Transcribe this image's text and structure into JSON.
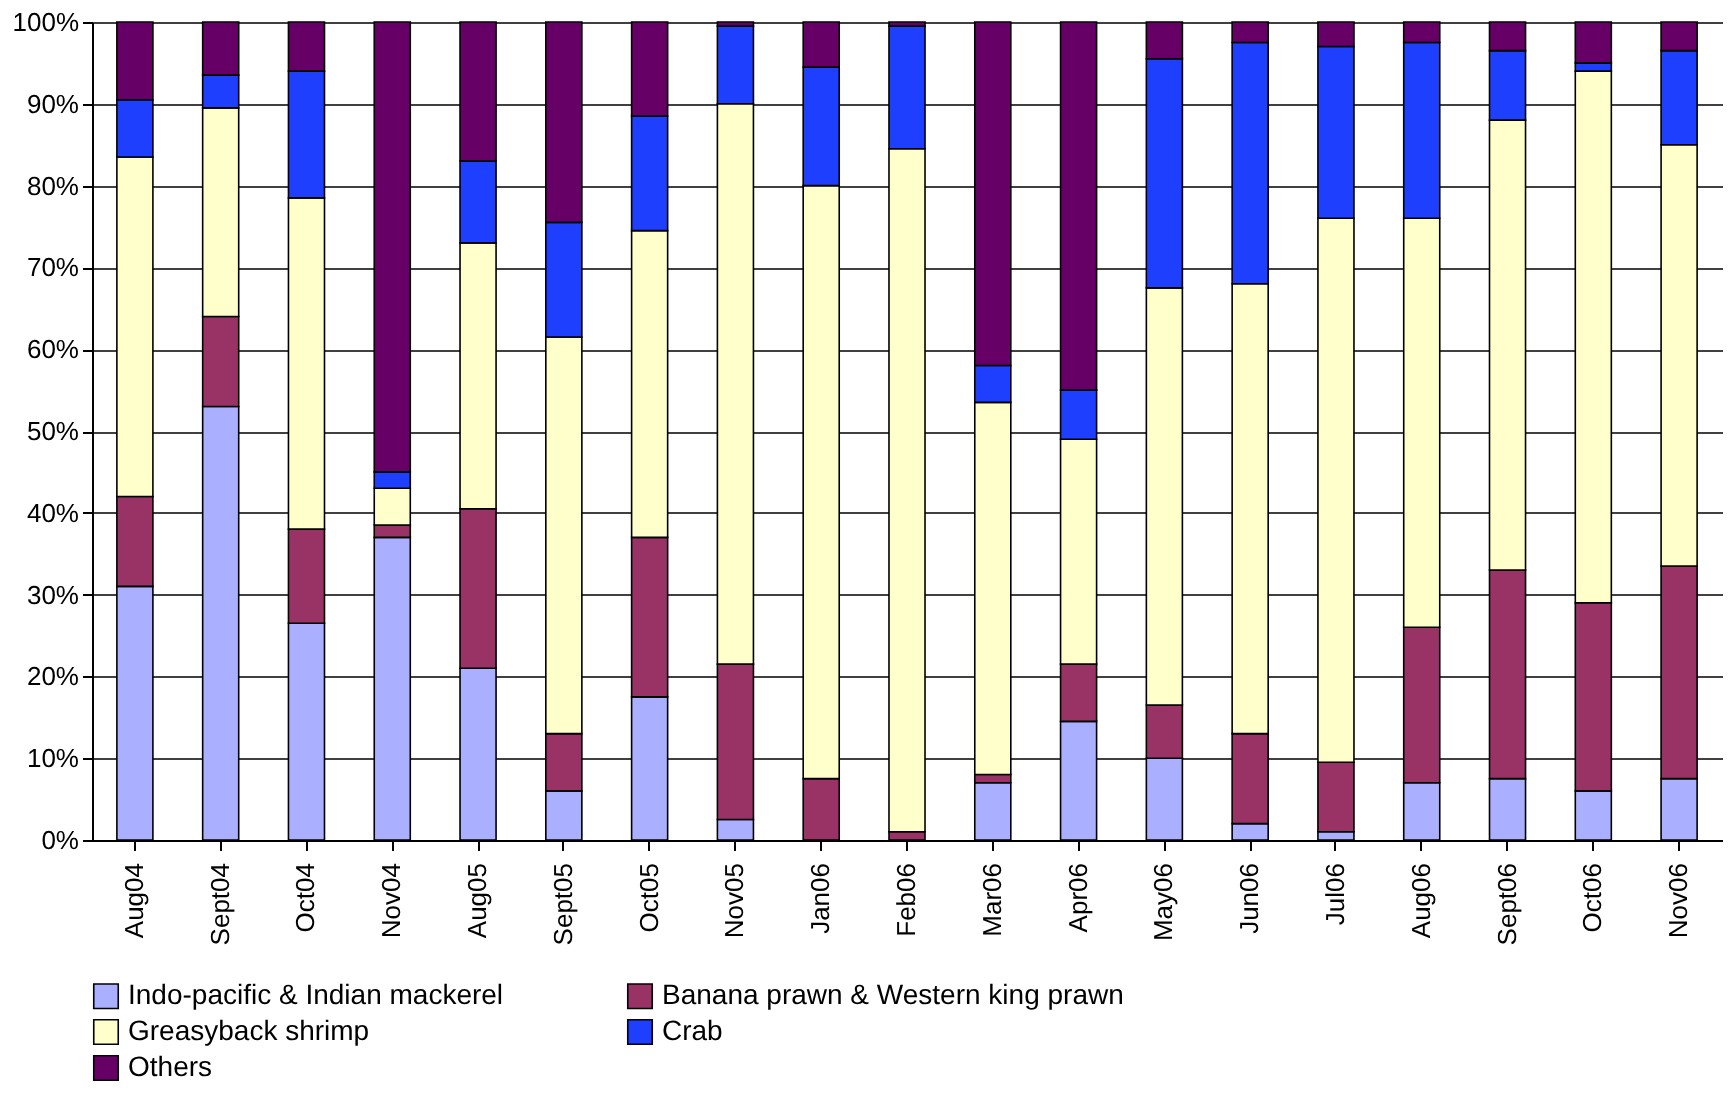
{
  "chart_data": {
    "type": "bar",
    "stacked": true,
    "categories": [
      "Aug04",
      "Sept04",
      "Oct04",
      "Nov04",
      "Aug05",
      "Sept05",
      "Oct05",
      "Nov05",
      "Jan06",
      "Feb06",
      "Mar06",
      "Apr06",
      "May06",
      "Jun06",
      "Jul06",
      "Aug06",
      "Sept06",
      "Oct06",
      "Nov06"
    ],
    "series": [
      {
        "name": "Indo-pacific & Indian mackerel",
        "color": "#aab0ff",
        "values": [
          31,
          53,
          26.5,
          37,
          21,
          6,
          17.5,
          2.5,
          0,
          0,
          7,
          14.5,
          10,
          2,
          1,
          7,
          7.5,
          6,
          7.5
        ]
      },
      {
        "name": "Banana prawn & Western king prawn",
        "color": "#993366",
        "values": [
          11,
          11,
          11.5,
          1.5,
          19.5,
          7,
          19.5,
          19,
          7.5,
          1,
          1,
          7,
          6.5,
          11,
          8.5,
          19,
          25.5,
          23,
          26
        ]
      },
      {
        "name": "Greasyback shrimp",
        "color": "#ffffcc",
        "values": [
          41.5,
          25.5,
          40.5,
          4.5,
          32.5,
          48.5,
          37.5,
          68.5,
          72.5,
          83.5,
          45.5,
          27.5,
          51,
          55,
          66.5,
          50,
          55,
          65,
          51.5
        ]
      },
      {
        "name": "Crab",
        "color": "#1f3fff",
        "values": [
          7,
          4,
          15.5,
          2,
          10,
          14,
          14,
          9.5,
          14.5,
          15,
          4.5,
          6,
          28,
          29.5,
          21,
          21.5,
          8.5,
          1,
          11.5
        ]
      },
      {
        "name": "Others",
        "color": "#660066",
        "values": [
          9.5,
          6.5,
          6,
          55,
          17,
          24.5,
          11.5,
          0.5,
          5.5,
          0.5,
          42,
          45,
          4.5,
          2.5,
          3,
          2.5,
          3.5,
          5,
          3.5
        ]
      }
    ],
    "ylim": [
      0,
      100
    ],
    "yticks": [
      {
        "value": 0,
        "label": "0%"
      },
      {
        "value": 10,
        "label": "10%"
      },
      {
        "value": 20,
        "label": "20%"
      },
      {
        "value": 30,
        "label": "30%"
      },
      {
        "value": 40,
        "label": "40%"
      },
      {
        "value": 50,
        "label": "50%"
      },
      {
        "value": 60,
        "label": "60%"
      },
      {
        "value": 70,
        "label": "70%"
      },
      {
        "value": 80,
        "label": "80%"
      },
      {
        "value": 90,
        "label": "90%"
      },
      {
        "value": 100,
        "label": "100%"
      }
    ],
    "grid": "y",
    "legend": "bottom"
  }
}
